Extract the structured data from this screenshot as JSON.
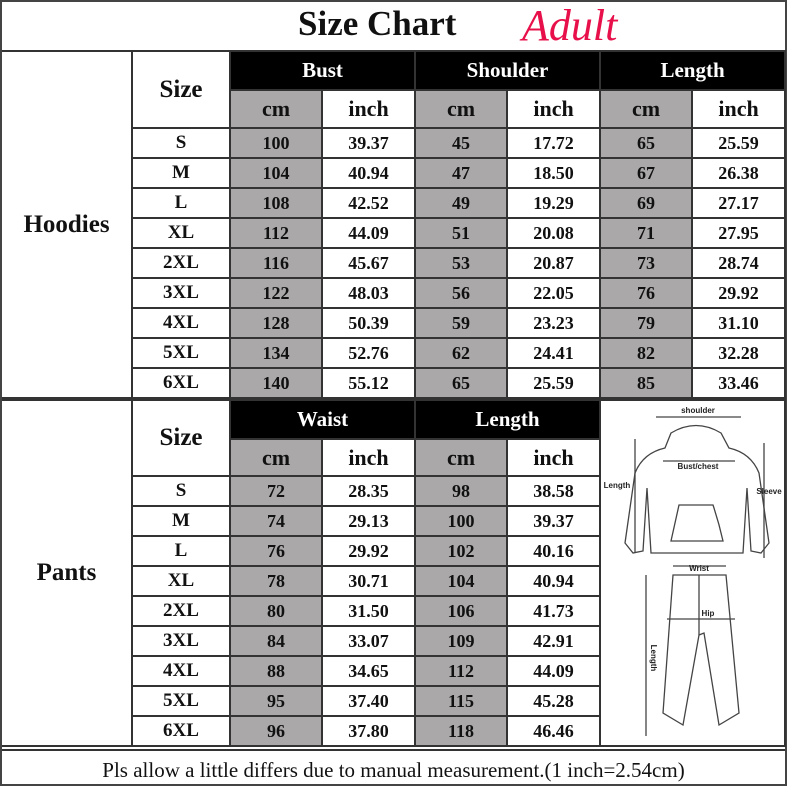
{
  "title": {
    "main": "Size Chart",
    "accent": "Adult",
    "accent_color": "#e8104a"
  },
  "colors": {
    "header_bg": "#000000",
    "cm_column_bg": "#aaa8a8"
  },
  "hoodies": {
    "label": "Hoodies",
    "size_header": "Size",
    "groups": [
      "Bust",
      "Shoulder",
      "Length"
    ],
    "units": [
      "cm",
      "inch",
      "cm",
      "inch",
      "cm",
      "inch"
    ],
    "rows": [
      {
        "size": "S",
        "values": [
          "100",
          "39.37",
          "45",
          "17.72",
          "65",
          "25.59"
        ]
      },
      {
        "size": "M",
        "values": [
          "104",
          "40.94",
          "47",
          "18.50",
          "67",
          "26.38"
        ]
      },
      {
        "size": "L",
        "values": [
          "108",
          "42.52",
          "49",
          "19.29",
          "69",
          "27.17"
        ]
      },
      {
        "size": "XL",
        "values": [
          "112",
          "44.09",
          "51",
          "20.08",
          "71",
          "27.95"
        ]
      },
      {
        "size": "2XL",
        "values": [
          "116",
          "45.67",
          "53",
          "20.87",
          "73",
          "28.74"
        ]
      },
      {
        "size": "3XL",
        "values": [
          "122",
          "48.03",
          "56",
          "22.05",
          "76",
          "29.92"
        ]
      },
      {
        "size": "4XL",
        "values": [
          "128",
          "50.39",
          "59",
          "23.23",
          "79",
          "31.10"
        ]
      },
      {
        "size": "5XL",
        "values": [
          "134",
          "52.76",
          "62",
          "24.41",
          "82",
          "32.28"
        ]
      },
      {
        "size": "6XL",
        "values": [
          "140",
          "55.12",
          "65",
          "25.59",
          "85",
          "33.46"
        ]
      }
    ]
  },
  "pants": {
    "label": "Pants",
    "size_header": "Size",
    "groups": [
      "Waist",
      "Length"
    ],
    "units": [
      "cm",
      "inch",
      "cm",
      "inch"
    ],
    "rows": [
      {
        "size": "S",
        "values": [
          "72",
          "28.35",
          "98",
          "38.58"
        ]
      },
      {
        "size": "M",
        "values": [
          "74",
          "29.13",
          "100",
          "39.37"
        ]
      },
      {
        "size": "L",
        "values": [
          "76",
          "29.92",
          "102",
          "40.16"
        ]
      },
      {
        "size": "XL",
        "values": [
          "78",
          "30.71",
          "104",
          "40.94"
        ]
      },
      {
        "size": "2XL",
        "values": [
          "80",
          "31.50",
          "106",
          "41.73"
        ]
      },
      {
        "size": "3XL",
        "values": [
          "84",
          "33.07",
          "109",
          "42.91"
        ]
      },
      {
        "size": "4XL",
        "values": [
          "88",
          "34.65",
          "112",
          "44.09"
        ]
      },
      {
        "size": "5XL",
        "values": [
          "95",
          "37.40",
          "115",
          "45.28"
        ]
      },
      {
        "size": "6XL",
        "values": [
          "96",
          "37.80",
          "118",
          "46.46"
        ]
      }
    ]
  },
  "diagram": {
    "hoodie_labels": {
      "shoulder": "shoulder",
      "bust": "Bust/chest",
      "length": "Length",
      "sleeve": "Sleeve"
    },
    "pants_labels": {
      "waist": "Wrist",
      "hip": "Hip",
      "length": "Length"
    }
  },
  "footer": "Pls allow a little differs due to manual measurement.(1 inch=2.54cm)"
}
